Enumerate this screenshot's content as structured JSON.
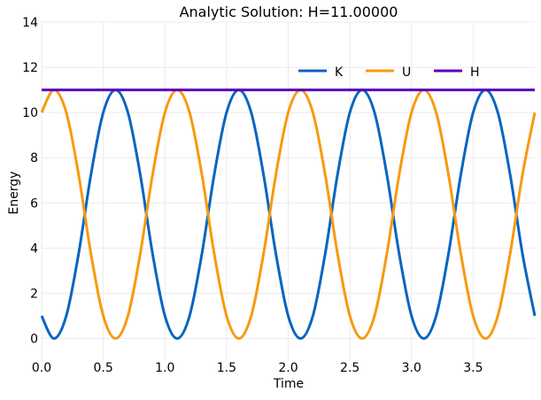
{
  "chart_data": {
    "type": "line",
    "title": "Analytic Solution: H=11.00000",
    "xlabel": "Time",
    "ylabel": "Energy",
    "xlim": [
      0.0,
      4.0
    ],
    "ylim": [
      -1.0,
      14.0
    ],
    "xticks": [
      0.0,
      0.5,
      1.0,
      1.5,
      2.0,
      2.5,
      3.0,
      3.5
    ],
    "xtick_labels": [
      "0.0",
      "0.5",
      "1.0",
      "1.5",
      "2.0",
      "2.5",
      "3.0",
      "3.5"
    ],
    "yticks": [
      0,
      2,
      4,
      6,
      8,
      10,
      12,
      14
    ],
    "ytick_labels": [
      "0",
      "2",
      "4",
      "6",
      "8",
      "10",
      "12",
      "14"
    ],
    "grid": true,
    "legend_position": "top-right",
    "x": [
      0.0,
      0.1,
      0.2,
      0.3,
      0.4,
      0.5,
      0.6,
      0.7,
      0.8,
      0.9,
      1.0,
      1.1,
      1.2,
      1.3,
      1.4,
      1.5,
      1.6,
      1.7,
      1.8,
      1.9,
      2.0,
      2.1,
      2.2,
      2.3,
      2.4,
      2.5,
      2.6,
      2.7,
      2.8,
      2.9,
      3.0,
      3.1,
      3.2,
      3.3,
      3.4,
      3.5,
      3.6,
      3.7,
      3.8,
      3.9,
      4.0
    ],
    "series": [
      {
        "name": "K",
        "color": "#0565c0",
        "values": [
          1.0,
          0.0,
          1.0,
          3.75,
          7.25,
          10.0,
          11.0,
          10.0,
          7.25,
          3.75,
          1.0,
          0.0,
          1.0,
          3.75,
          7.25,
          10.0,
          11.0,
          10.0,
          7.25,
          3.75,
          1.0,
          0.0,
          1.0,
          3.75,
          7.25,
          10.0,
          11.0,
          10.0,
          7.25,
          3.75,
          1.0,
          0.0,
          1.0,
          3.75,
          7.25,
          10.0,
          11.0,
          10.0,
          7.25,
          3.75,
          1.0
        ]
      },
      {
        "name": "U",
        "color": "#f79a0f",
        "values": [
          10.0,
          11.0,
          10.0,
          7.25,
          3.75,
          1.0,
          0.0,
          1.0,
          3.75,
          7.25,
          10.0,
          11.0,
          10.0,
          7.25,
          3.75,
          1.0,
          0.0,
          1.0,
          3.75,
          7.25,
          10.0,
          11.0,
          10.0,
          7.25,
          3.75,
          1.0,
          0.0,
          1.0,
          3.75,
          7.25,
          10.0,
          11.0,
          10.0,
          7.25,
          3.75,
          1.0,
          0.0,
          1.0,
          3.75,
          7.25,
          10.0
        ]
      },
      {
        "name": "H",
        "color": "#5a00bd",
        "values": [
          11.0,
          11.0,
          11.0,
          11.0,
          11.0,
          11.0,
          11.0,
          11.0,
          11.0,
          11.0,
          11.0,
          11.0,
          11.0,
          11.0,
          11.0,
          11.0,
          11.0,
          11.0,
          11.0,
          11.0,
          11.0,
          11.0,
          11.0,
          11.0,
          11.0,
          11.0,
          11.0,
          11.0,
          11.0,
          11.0,
          11.0,
          11.0,
          11.0,
          11.0,
          11.0,
          11.0,
          11.0,
          11.0,
          11.0,
          11.0,
          11.0
        ]
      }
    ]
  }
}
